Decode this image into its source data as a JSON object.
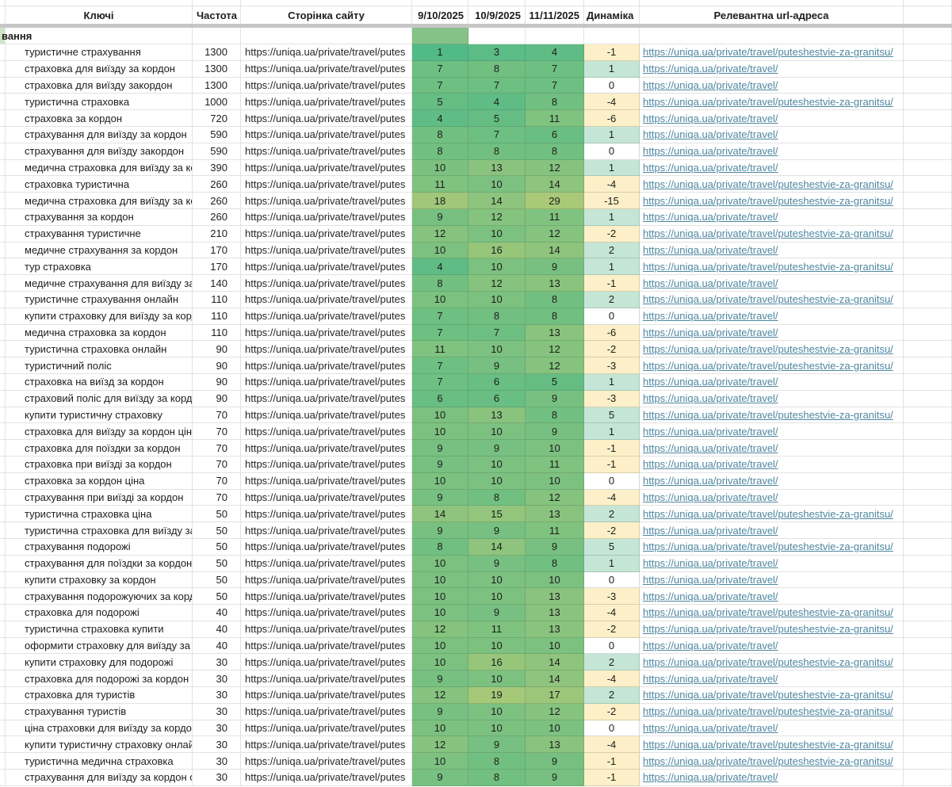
{
  "sheet": {
    "header": {
      "keys": "Ключі",
      "frequency": "Частота",
      "page": "Сторінка сайту",
      "date1": "9/10/2025",
      "date2": "10/9/2025",
      "date3": "11/11/2025",
      "dynamics": "Динаміка",
      "url": "Релевантна url-адреса"
    },
    "category_row": {
      "label": "вання"
    },
    "page_display": "https://uniqa.ua/private/travel/putes",
    "urls": {
      "long": "https://uniqa.ua/private/travel/puteshestvie-za-granitsu/",
      "short": "https://uniqa.ua/private/travel/"
    },
    "colors": {
      "pos_scale_low": "#52ba87",
      "pos_scale_high": "#aac978",
      "dyn_positive": "#c5e6d7",
      "dyn_negative": "#fdf0c8",
      "dyn_zero": "#ffffff",
      "category_cell_green": "#84c287",
      "category_sliver_green": "#cfe4c6",
      "link_color": "#4e87a0",
      "divider_gray": "#c6c6c6",
      "gridline": "#e2e2e2"
    },
    "rows": [
      {
        "keyword": "туристичне страхування",
        "frequency": 1300,
        "positions": [
          1,
          3,
          4
        ],
        "dynamics": -1,
        "url": "https://uniqa.ua/private/travel/puteshestvie-za-granitsu/"
      },
      {
        "keyword": "страховка для виїзду за кордон",
        "frequency": 1300,
        "positions": [
          7,
          8,
          7
        ],
        "dynamics": 1,
        "url": "https://uniqa.ua/private/travel/"
      },
      {
        "keyword": "страховка для виїзду закордон",
        "frequency": 1300,
        "positions": [
          7,
          7,
          7
        ],
        "dynamics": 0,
        "url": "https://uniqa.ua/private/travel/"
      },
      {
        "keyword": "туристична страховка",
        "frequency": 1000,
        "positions": [
          5,
          4,
          8
        ],
        "dynamics": -4,
        "url": "https://uniqa.ua/private/travel/puteshestvie-za-granitsu/"
      },
      {
        "keyword": "страховка за кордон",
        "frequency": 720,
        "positions": [
          4,
          5,
          11
        ],
        "dynamics": -6,
        "url": "https://uniqa.ua/private/travel/"
      },
      {
        "keyword": "страхування для виїзду за кордон",
        "frequency": 590,
        "positions": [
          8,
          7,
          6
        ],
        "dynamics": 1,
        "url": "https://uniqa.ua/private/travel/"
      },
      {
        "keyword": "страхування для виїзду закордон",
        "frequency": 590,
        "positions": [
          8,
          8,
          8
        ],
        "dynamics": 0,
        "url": "https://uniqa.ua/private/travel/"
      },
      {
        "keyword": "медична страховка для виїзду за кор",
        "frequency": 390,
        "positions": [
          10,
          13,
          12
        ],
        "dynamics": 1,
        "url": "https://uniqa.ua/private/travel/"
      },
      {
        "keyword": "страховка туристична",
        "frequency": 260,
        "positions": [
          11,
          10,
          14
        ],
        "dynamics": -4,
        "url": "https://uniqa.ua/private/travel/puteshestvie-za-granitsu/"
      },
      {
        "keyword": "медична страховка для виїзду за кор",
        "frequency": 260,
        "positions": [
          18,
          14,
          29
        ],
        "dynamics": -15,
        "url": "https://uniqa.ua/private/travel/puteshestvie-za-granitsu/"
      },
      {
        "keyword": "страхування за кордон",
        "frequency": 260,
        "positions": [
          9,
          12,
          11
        ],
        "dynamics": 1,
        "url": "https://uniqa.ua/private/travel/"
      },
      {
        "keyword": "страхування туристичне",
        "frequency": 210,
        "positions": [
          12,
          10,
          12
        ],
        "dynamics": -2,
        "url": "https://uniqa.ua/private/travel/puteshestvie-za-granitsu/"
      },
      {
        "keyword": "медичне страхування за кордон",
        "frequency": 170,
        "positions": [
          10,
          16,
          14
        ],
        "dynamics": 2,
        "url": "https://uniqa.ua/private/travel/"
      },
      {
        "keyword": "тур страховка",
        "frequency": 170,
        "positions": [
          4,
          10,
          9
        ],
        "dynamics": 1,
        "url": "https://uniqa.ua/private/travel/puteshestvie-za-granitsu/"
      },
      {
        "keyword": "медичне страхування для виїзду за к",
        "frequency": 140,
        "positions": [
          8,
          12,
          13
        ],
        "dynamics": -1,
        "url": "https://uniqa.ua/private/travel/"
      },
      {
        "keyword": "туристичне страхування онлайн",
        "frequency": 110,
        "positions": [
          10,
          10,
          8
        ],
        "dynamics": 2,
        "url": "https://uniqa.ua/private/travel/puteshestvie-za-granitsu/"
      },
      {
        "keyword": "купити страховку для виїзду за корд",
        "frequency": 110,
        "positions": [
          7,
          8,
          8
        ],
        "dynamics": 0,
        "url": "https://uniqa.ua/private/travel/"
      },
      {
        "keyword": "медична страховка за кордон",
        "frequency": 110,
        "positions": [
          7,
          7,
          13
        ],
        "dynamics": -6,
        "url": "https://uniqa.ua/private/travel/"
      },
      {
        "keyword": "туристична страховка онлайн",
        "frequency": 90,
        "positions": [
          11,
          10,
          12
        ],
        "dynamics": -2,
        "url": "https://uniqa.ua/private/travel/puteshestvie-za-granitsu/"
      },
      {
        "keyword": "туристичний поліс",
        "frequency": 90,
        "positions": [
          7,
          9,
          12
        ],
        "dynamics": -3,
        "url": "https://uniqa.ua/private/travel/puteshestvie-za-granitsu/"
      },
      {
        "keyword": "страховка на виїзд за кордон",
        "frequency": 90,
        "positions": [
          7,
          6,
          5
        ],
        "dynamics": 1,
        "url": "https://uniqa.ua/private/travel/"
      },
      {
        "keyword": "страховий поліс для виїзду за кордо",
        "frequency": 90,
        "positions": [
          6,
          6,
          9
        ],
        "dynamics": -3,
        "url": "https://uniqa.ua/private/travel/"
      },
      {
        "keyword": "купити туристичну страховку",
        "frequency": 70,
        "positions": [
          10,
          13,
          8
        ],
        "dynamics": 5,
        "url": "https://uniqa.ua/private/travel/puteshestvie-za-granitsu/"
      },
      {
        "keyword": "страховка для виїзду за кордон ціна",
        "frequency": 70,
        "positions": [
          10,
          10,
          9
        ],
        "dynamics": 1,
        "url": "https://uniqa.ua/private/travel/"
      },
      {
        "keyword": "страховка для поїздки за кордон",
        "frequency": 70,
        "positions": [
          9,
          9,
          10
        ],
        "dynamics": -1,
        "url": "https://uniqa.ua/private/travel/"
      },
      {
        "keyword": "страховка при виїзді за кордон",
        "frequency": 70,
        "positions": [
          9,
          10,
          11
        ],
        "dynamics": -1,
        "url": "https://uniqa.ua/private/travel/"
      },
      {
        "keyword": "страховка за кордон ціна",
        "frequency": 70,
        "positions": [
          10,
          10,
          10
        ],
        "dynamics": 0,
        "url": "https://uniqa.ua/private/travel/"
      },
      {
        "keyword": "страхування при виїзді за кордон",
        "frequency": 70,
        "positions": [
          9,
          8,
          12
        ],
        "dynamics": -4,
        "url": "https://uniqa.ua/private/travel/"
      },
      {
        "keyword": "туристична страховка ціна",
        "frequency": 50,
        "positions": [
          14,
          15,
          13
        ],
        "dynamics": 2,
        "url": "https://uniqa.ua/private/travel/puteshestvie-za-granitsu/"
      },
      {
        "keyword": "туристична страховка для виїзду за",
        "frequency": 50,
        "positions": [
          9,
          9,
          11
        ],
        "dynamics": -2,
        "url": "https://uniqa.ua/private/travel/"
      },
      {
        "keyword": "страхування подорожі",
        "frequency": 50,
        "positions": [
          8,
          14,
          9
        ],
        "dynamics": 5,
        "url": "https://uniqa.ua/private/travel/puteshestvie-za-granitsu/"
      },
      {
        "keyword": "страхування для поїздки за кордон",
        "frequency": 50,
        "positions": [
          10,
          9,
          8
        ],
        "dynamics": 1,
        "url": "https://uniqa.ua/private/travel/"
      },
      {
        "keyword": "купити страховку за кордон",
        "frequency": 50,
        "positions": [
          10,
          10,
          10
        ],
        "dynamics": 0,
        "url": "https://uniqa.ua/private/travel/"
      },
      {
        "keyword": "страхування подорожуючих за корд",
        "frequency": 50,
        "positions": [
          10,
          10,
          13
        ],
        "dynamics": -3,
        "url": "https://uniqa.ua/private/travel/"
      },
      {
        "keyword": "страховка для подорожі",
        "frequency": 40,
        "positions": [
          10,
          9,
          13
        ],
        "dynamics": -4,
        "url": "https://uniqa.ua/private/travel/puteshestvie-za-granitsu/"
      },
      {
        "keyword": "туристична страховка купити",
        "frequency": 40,
        "positions": [
          12,
          11,
          13
        ],
        "dynamics": -2,
        "url": "https://uniqa.ua/private/travel/puteshestvie-za-granitsu/"
      },
      {
        "keyword": "оформити страховку для виїзду за ко",
        "frequency": 40,
        "positions": [
          10,
          10,
          10
        ],
        "dynamics": 0,
        "url": "https://uniqa.ua/private/travel/"
      },
      {
        "keyword": "купити страховку для подорожі",
        "frequency": 30,
        "positions": [
          10,
          16,
          14
        ],
        "dynamics": 2,
        "url": "https://uniqa.ua/private/travel/puteshestvie-za-granitsu/"
      },
      {
        "keyword": "страховка для подорожі за кордон",
        "frequency": 30,
        "positions": [
          9,
          10,
          14
        ],
        "dynamics": -4,
        "url": "https://uniqa.ua/private/travel/"
      },
      {
        "keyword": "страховка для туристів",
        "frequency": 30,
        "positions": [
          12,
          19,
          17
        ],
        "dynamics": 2,
        "url": "https://uniqa.ua/private/travel/puteshestvie-za-granitsu/"
      },
      {
        "keyword": "страхування туристів",
        "frequency": 30,
        "positions": [
          9,
          10,
          12
        ],
        "dynamics": -2,
        "url": "https://uniqa.ua/private/travel/puteshestvie-za-granitsu/"
      },
      {
        "keyword": "ціна страховки для виїзду за кордон",
        "frequency": 30,
        "positions": [
          10,
          10,
          10
        ],
        "dynamics": 0,
        "url": "https://uniqa.ua/private/travel/"
      },
      {
        "keyword": "купити туристичну страховку онлайн",
        "frequency": 30,
        "positions": [
          12,
          9,
          13
        ],
        "dynamics": -4,
        "url": "https://uniqa.ua/private/travel/puteshestvie-za-granitsu/"
      },
      {
        "keyword": "туристична медична страховка",
        "frequency": 30,
        "positions": [
          10,
          8,
          9
        ],
        "dynamics": -1,
        "url": "https://uniqa.ua/private/travel/puteshestvie-za-granitsu/"
      },
      {
        "keyword": "страхування для виїзду за кордон он",
        "frequency": 30,
        "positions": [
          9,
          8,
          9
        ],
        "dynamics": -1,
        "url": "https://uniqa.ua/private/travel/"
      }
    ]
  }
}
